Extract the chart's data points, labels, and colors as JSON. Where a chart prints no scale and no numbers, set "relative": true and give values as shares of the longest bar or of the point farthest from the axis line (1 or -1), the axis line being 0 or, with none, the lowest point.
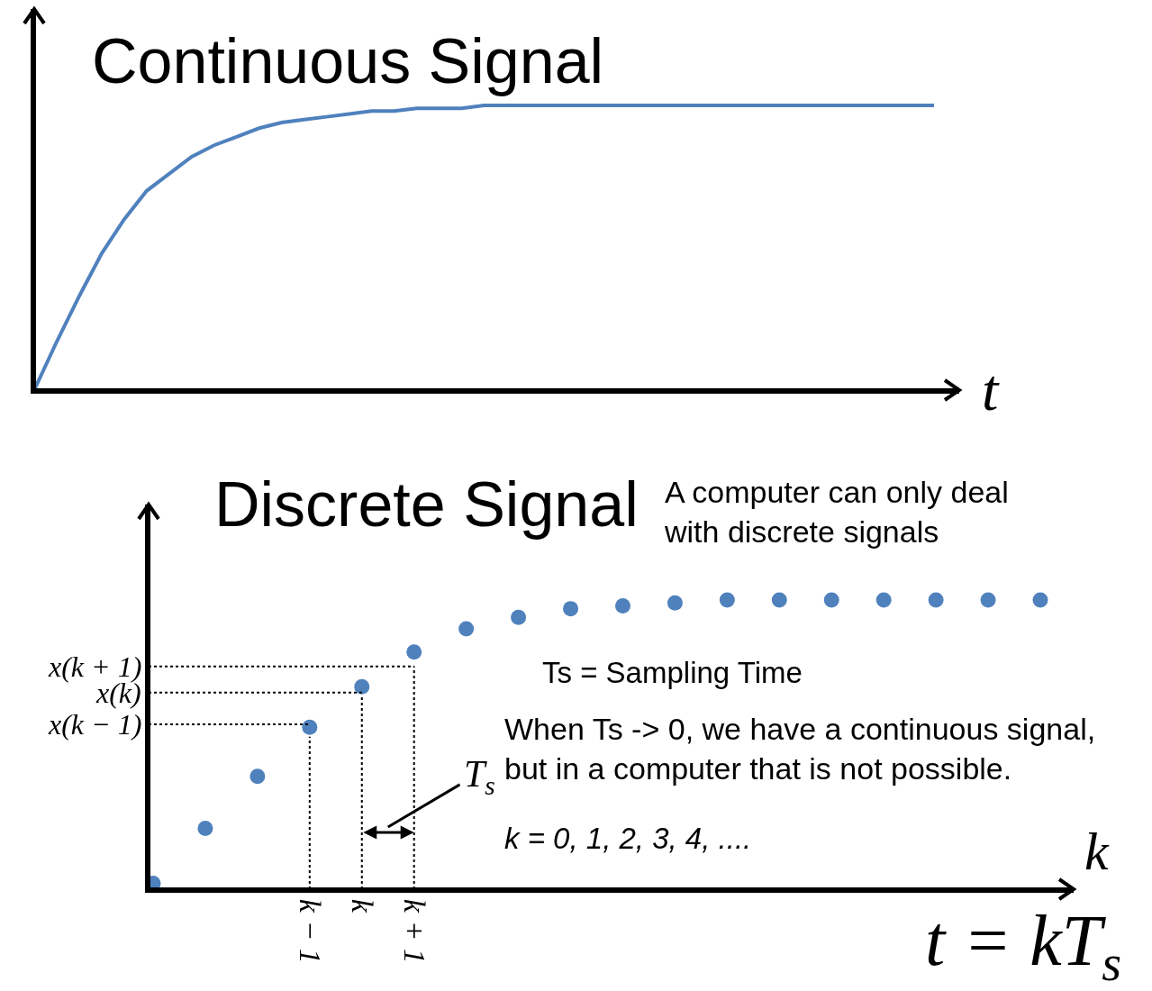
{
  "chart_data": [
    {
      "type": "line",
      "title": "Continuous Signal",
      "xlabel": "t",
      "relative": true,
      "marker": "none",
      "line_style": "solid",
      "tick_labels": false,
      "categories": [
        null,
        null,
        null,
        null,
        null,
        null,
        null,
        null,
        null,
        null,
        null,
        null,
        null,
        null,
        null,
        null,
        null,
        null,
        null,
        null,
        null,
        null,
        null,
        null,
        null,
        null,
        null,
        null,
        null,
        null,
        null,
        null,
        null,
        null,
        null,
        null,
        null,
        null,
        null,
        null,
        null
      ],
      "series": [
        {
          "color": "#4f81bd",
          "values": [
            0,
            0.17,
            0.33,
            0.48,
            0.6,
            0.7,
            0.76,
            0.82,
            0.86,
            0.89,
            0.92,
            0.94,
            0.95,
            0.96,
            0.97,
            0.98,
            0.98,
            0.99,
            0.99,
            0.99,
            1,
            1,
            1,
            1,
            1,
            1,
            1,
            1,
            1,
            1,
            1,
            1,
            1,
            1,
            1,
            1,
            1,
            1,
            1,
            1,
            1
          ]
        }
      ]
    },
    {
      "type": "scatter",
      "title": "Discrete Signal",
      "subtitle": "A computer can only deal\nwith discrete signals",
      "xlabel": "k",
      "relative": true,
      "marker": "circle",
      "tick_labels": "x",
      "categories": [
        null,
        null,
        null,
        "k − 1",
        "k",
        "k + 1",
        null,
        null,
        null,
        null,
        null,
        null,
        null,
        null,
        null,
        null,
        null,
        null
      ],
      "series": [
        {
          "color": "#4f81bd",
          "values": [
            0.02,
            0.21,
            0.39,
            0.56,
            0.7,
            0.82,
            0.9,
            0.94,
            0.97,
            0.98,
            0.99,
            1,
            1,
            1,
            1,
            1,
            1,
            1
          ]
        }
      ],
      "ref_lines": [
        {
          "axis": "y",
          "value": 0.57,
          "label": "x(k − 1)",
          "color": "#000000",
          "line_style": "dotted"
        },
        {
          "axis": "y",
          "value": 0.68,
          "label": "x(k)",
          "color": "#000000",
          "line_style": "dotted"
        },
        {
          "axis": "y",
          "value": 0.77,
          "label": "x(k + 1)",
          "color": "#000000",
          "line_style": "dotted"
        },
        {
          "axis": "x",
          "value": "k − 1",
          "color": "#000000",
          "line_style": "dotted"
        },
        {
          "axis": "x",
          "value": "k",
          "color": "#000000",
          "line_style": "dotted"
        },
        {
          "axis": "x",
          "value": "k + 1",
          "color": "#000000",
          "line_style": "dotted"
        }
      ],
      "annotations": [
        "T$_{s}$",
        "Ts = Sampling Time",
        "When Ts -> 0, we have a continuous signal,\nbut in a computer that is not possible.",
        "k = 0, 1, 2, 3, 4, ....",
        "t = kT$_{s}$"
      ]
    }
  ]
}
